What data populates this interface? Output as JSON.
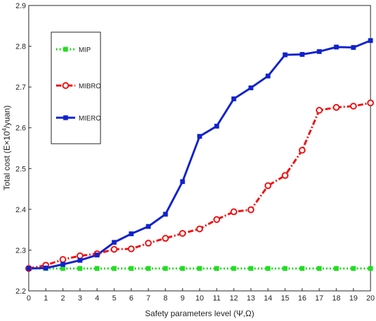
{
  "chart_data": {
    "type": "line",
    "xlabel": "Safety parameters level (Ψ,Ω)",
    "ylabel": {
      "prefix": "Total cost (E×10",
      "sup": "4",
      "suffix": "/yuan)"
    },
    "xlim": [
      0,
      20
    ],
    "ylim": [
      2.2,
      2.9
    ],
    "xticks": [
      "0",
      "1",
      "2",
      "3",
      "4",
      "5",
      "6",
      "7",
      "8",
      "9",
      "10",
      "11",
      "12",
      "13",
      "14",
      "15",
      "16",
      "17",
      "18",
      "19",
      "20"
    ],
    "yticks": [
      "2.2",
      "2.3",
      "2.4",
      "2.5",
      "2.6",
      "2.7",
      "2.8",
      "2.9"
    ],
    "grid": false,
    "legend_position": "top-left",
    "x": [
      0,
      1,
      2,
      3,
      4,
      5,
      6,
      7,
      8,
      9,
      10,
      11,
      12,
      13,
      14,
      15,
      16,
      17,
      18,
      19,
      20
    ],
    "series": [
      {
        "name": "MIP",
        "color": "#22dd22",
        "line": "dotted",
        "marker": "square",
        "values": [
          2.255,
          2.255,
          2.255,
          2.255,
          2.255,
          2.255,
          2.255,
          2.255,
          2.255,
          2.255,
          2.255,
          2.255,
          2.255,
          2.255,
          2.255,
          2.255,
          2.255,
          2.255,
          2.255,
          2.255,
          2.255
        ]
      },
      {
        "name": "MIBRO",
        "color": "#ee1111",
        "line": "dashdot",
        "marker": "circle",
        "values": [
          2.255,
          2.263,
          2.277,
          2.286,
          2.291,
          2.302,
          2.303,
          2.317,
          2.329,
          2.341,
          2.352,
          2.375,
          2.394,
          2.399,
          2.458,
          2.483,
          2.545,
          2.643,
          2.65,
          2.653,
          2.661
        ]
      },
      {
        "name": "MIERO",
        "color": "#1122cc",
        "line": "solid",
        "marker": "square",
        "values": [
          2.255,
          2.256,
          2.265,
          2.275,
          2.288,
          2.319,
          2.34,
          2.358,
          2.388,
          2.468,
          2.579,
          2.604,
          2.671,
          2.698,
          2.727,
          2.779,
          2.78,
          2.787,
          2.798,
          2.797,
          2.814
        ]
      }
    ]
  }
}
